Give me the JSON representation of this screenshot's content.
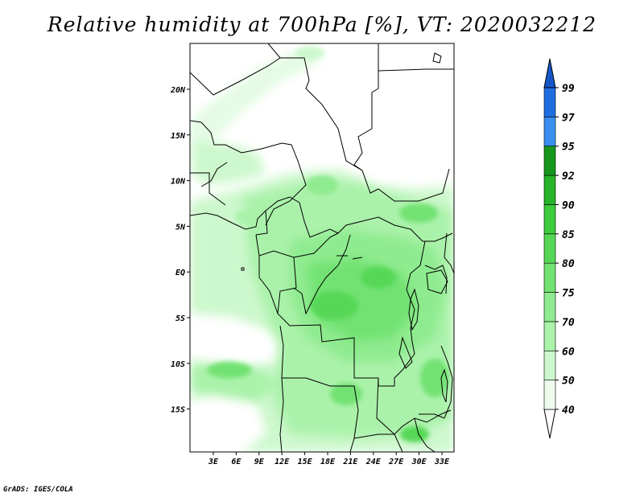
{
  "title": "Relative humidity at 700hPa [%], VT: 2020032212",
  "credit": "GrADS: IGES/COLA",
  "map": {
    "lat_ticks": [
      "20N",
      "15N",
      "10N",
      "5N",
      "EQ",
      "5S",
      "10S",
      "15S"
    ],
    "lon_ticks": [
      "3E",
      "6E",
      "9E",
      "12E",
      "15E",
      "18E",
      "21E",
      "24E",
      "27E",
      "30E",
      "33E"
    ]
  },
  "colorbar": {
    "levels": [
      "40",
      "50",
      "60",
      "70",
      "75",
      "80",
      "85",
      "90",
      "92",
      "95",
      "97",
      "99"
    ],
    "colors": [
      "#ffffff",
      "#eefcee",
      "#cdf8cd",
      "#aaf2aa",
      "#8feb8f",
      "#72e272",
      "#56d856",
      "#3ecb3e",
      "#28b428",
      "#16961a",
      "#3a8ff0",
      "#1e6ee0",
      "#1555c8"
    ]
  }
}
